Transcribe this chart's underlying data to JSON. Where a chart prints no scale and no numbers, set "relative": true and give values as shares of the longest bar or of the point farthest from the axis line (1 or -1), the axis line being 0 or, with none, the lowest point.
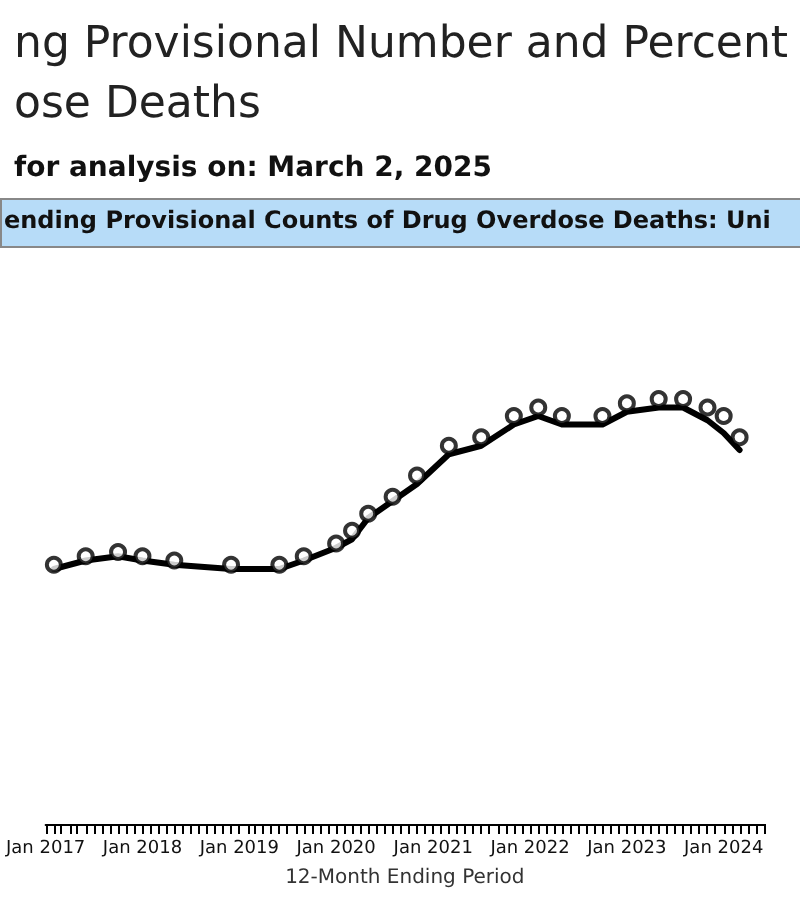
{
  "chart_data": {
    "type": "line",
    "title": "ng Provisional Number and Percent\nose Deaths",
    "subtitle": "for analysis on: March 2, 2025",
    "annotations": [
      "ending Provisional Counts of Drug Overdose Deaths: Uni"
    ],
    "xlabel": "12-Month Ending Period",
    "relative": true,
    "grid": false,
    "xlim": [
      "2017-01",
      "2024-06"
    ],
    "xticks": [
      {
        "value": "2017-01",
        "label": "Jan 2017"
      },
      {
        "value": "2018-01",
        "label": "Jan 2018"
      },
      {
        "value": "2019-01",
        "label": "Jan 2019"
      },
      {
        "value": "2020-01",
        "label": "Jan 2020"
      },
      {
        "value": "2021-01",
        "label": "Jan 2021"
      },
      {
        "value": "2022-01",
        "label": "Jan 2022"
      },
      {
        "value": "2023-01",
        "label": "Jan 2023"
      },
      {
        "value": "2024-01",
        "label": "Jan 2024"
      }
    ],
    "series": [
      {
        "color": "#000000",
        "marker": "none",
        "line_style": "solid",
        "x": [
          "2017-02",
          "2017-06",
          "2017-10",
          "2018-01",
          "2018-05",
          "2018-12",
          "2019-06",
          "2019-09",
          "2020-01",
          "2020-03",
          "2020-05",
          "2020-08",
          "2020-11",
          "2021-03",
          "2021-07",
          "2021-11",
          "2022-02",
          "2022-05",
          "2022-10",
          "2023-01",
          "2023-05",
          "2023-08",
          "2023-11",
          "2024-01",
          "2024-03"
        ],
        "values": [
          0.6,
          0.62,
          0.63,
          0.62,
          0.61,
          0.6,
          0.6,
          0.62,
          0.65,
          0.67,
          0.72,
          0.76,
          0.8,
          0.87,
          0.89,
          0.94,
          0.96,
          0.94,
          0.94,
          0.97,
          0.98,
          0.98,
          0.95,
          0.92,
          0.88
        ]
      },
      {
        "type": "scatter",
        "color": "#000000",
        "marker": "circle",
        "x": [
          "2017-02",
          "2017-06",
          "2017-10",
          "2018-01",
          "2018-05",
          "2018-12",
          "2019-06",
          "2019-09",
          "2020-01",
          "2020-03",
          "2020-05",
          "2020-08",
          "2020-11",
          "2021-03",
          "2021-07",
          "2021-11",
          "2022-02",
          "2022-05",
          "2022-10",
          "2023-01",
          "2023-05",
          "2023-08",
          "2023-11",
          "2024-01",
          "2024-03"
        ],
        "values": [
          0.61,
          0.63,
          0.64,
          0.63,
          0.62,
          0.61,
          0.61,
          0.63,
          0.66,
          0.69,
          0.73,
          0.77,
          0.82,
          0.89,
          0.91,
          0.96,
          0.98,
          0.96,
          0.96,
          0.99,
          1.0,
          1.0,
          0.98,
          0.96,
          0.91
        ]
      }
    ]
  }
}
